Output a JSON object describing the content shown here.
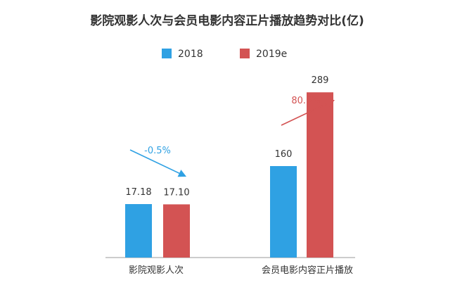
{
  "chart_data": {
    "type": "bar",
    "title": "影院观影人次与会员电影内容正片播放趋势对比(亿)",
    "categories": [
      "影院观影人次",
      "会员电影内容正片播放"
    ],
    "series": [
      {
        "name": "2018",
        "values": [
          17.18,
          160
        ],
        "labels": [
          "17.18",
          "160"
        ],
        "color": "#2fa1e3"
      },
      {
        "name": "2019e",
        "values": [
          17.1,
          289
        ],
        "labels": [
          "17.10",
          "289"
        ],
        "color": "#d35353"
      }
    ],
    "annotations": [
      {
        "category": "影院观影人次",
        "text": "-0.5%",
        "direction": "down",
        "color": "#2fa1e3"
      },
      {
        "category": "会员电影内容正片播放",
        "text": "80.6%",
        "direction": "up",
        "color": "#d35353"
      }
    ],
    "axis_color": "#9a9a9a",
    "text_color": "#333333",
    "legend_position": "top-center",
    "grid": false
  }
}
